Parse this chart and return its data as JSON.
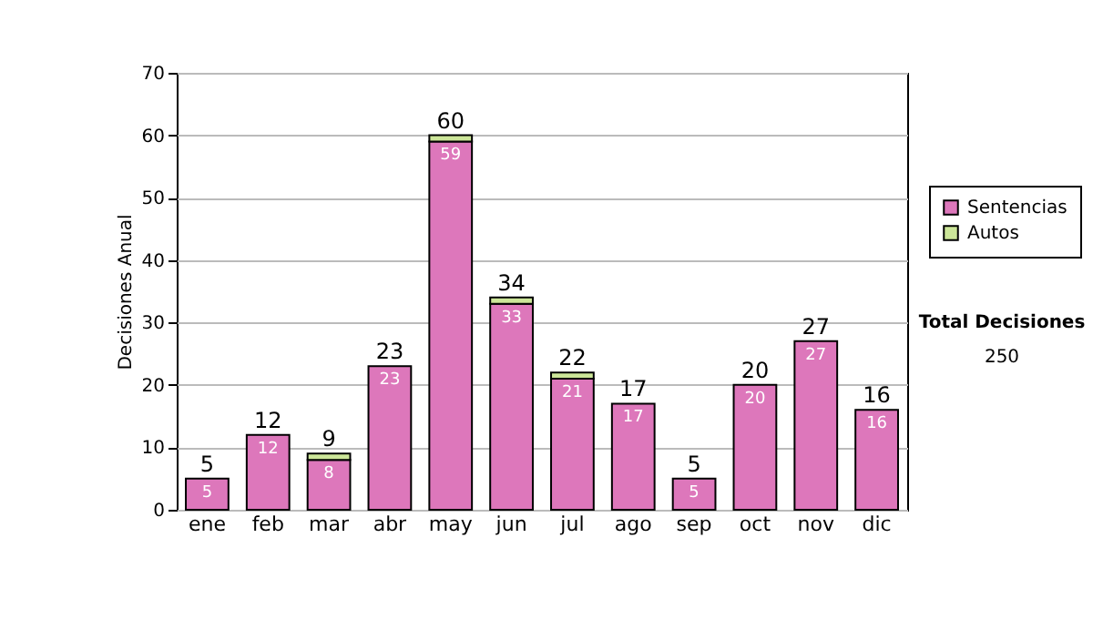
{
  "chart_data": {
    "type": "bar",
    "stacked": true,
    "ylabel": "Decisiones Anual",
    "categories": [
      "ene",
      "feb",
      "mar",
      "abr",
      "may",
      "jun",
      "jul",
      "ago",
      "sep",
      "oct",
      "nov",
      "dic"
    ],
    "series": [
      {
        "name": "Sentencias",
        "color": "#dd77bb",
        "values": [
          5,
          12,
          8,
          23,
          59,
          33,
          21,
          17,
          5,
          20,
          27,
          16
        ],
        "value_labels": [
          "5",
          "12",
          "8",
          "23",
          "59",
          "33",
          "21",
          "17",
          "5",
          "20",
          "27",
          "16"
        ]
      },
      {
        "name": "Autos",
        "color": "#cce699",
        "values": [
          null,
          null,
          1,
          null,
          1,
          1,
          1,
          null,
          null,
          null,
          null,
          null
        ]
      }
    ],
    "totals": [
      "5",
      "12",
      "9",
      "23",
      "60",
      "34",
      "22",
      "17",
      "5",
      "20",
      "27",
      "16"
    ],
    "ylim": [
      0,
      70
    ],
    "yticks": [
      0,
      10,
      20,
      30,
      40,
      50,
      60,
      70
    ],
    "grid": "y",
    "legend": "right",
    "annotations": [
      "Total Decisiones",
      "250"
    ]
  }
}
